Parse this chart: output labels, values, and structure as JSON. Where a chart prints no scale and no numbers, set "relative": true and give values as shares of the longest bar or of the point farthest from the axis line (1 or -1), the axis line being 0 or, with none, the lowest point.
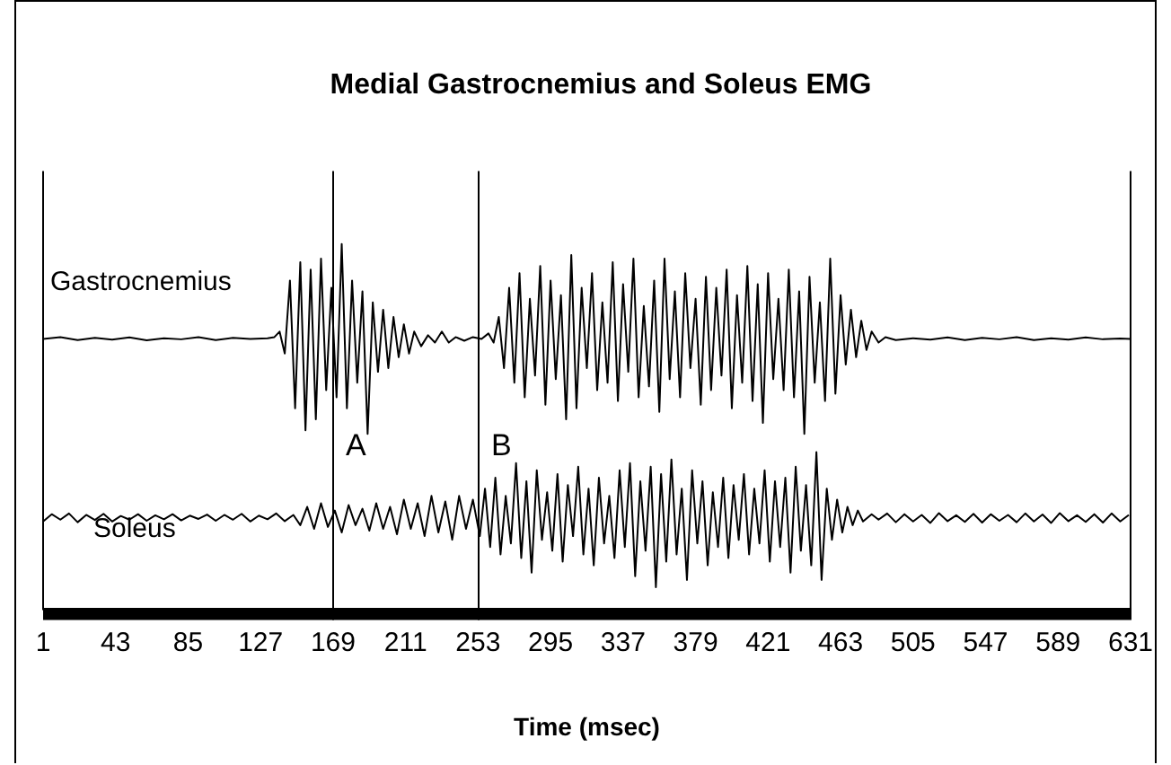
{
  "chart_data": {
    "type": "line",
    "title": "Medial Gastrocnemius and Soleus EMG",
    "xlabel": "Time (msec)",
    "relative": true,
    "xlim": [
      1,
      631
    ],
    "xticks": [
      1,
      43,
      85,
      127,
      169,
      211,
      253,
      295,
      337,
      379,
      421,
      463,
      505,
      547,
      589,
      631
    ],
    "tick_labels": "x",
    "grid": false,
    "legend": false,
    "marker": "none",
    "line_style": "solid",
    "ref_lines": [
      {
        "axis": "x",
        "value": 169,
        "label": "A",
        "color": "#000000"
      },
      {
        "axis": "x",
        "value": 253,
        "label": "B",
        "color": "#000000"
      }
    ],
    "series": [
      {
        "name": "Gastrocnemius",
        "color": "#000000",
        "x": [
          1,
          11,
          21,
          31,
          41,
          51,
          61,
          71,
          81,
          91,
          101,
          111,
          121,
          131,
          135,
          138,
          141,
          144,
          147,
          150,
          153,
          156,
          159,
          162,
          165,
          168,
          171,
          174,
          177,
          180,
          183,
          186,
          189,
          192,
          195,
          198,
          201,
          204,
          207,
          210,
          213,
          216,
          220,
          224,
          228,
          232,
          236,
          240,
          245,
          250,
          255,
          259,
          262,
          265,
          268,
          271,
          274,
          277,
          280,
          283,
          286,
          289,
          292,
          295,
          298,
          301,
          304,
          307,
          310,
          313,
          316,
          319,
          322,
          325,
          328,
          331,
          334,
          337,
          340,
          343,
          346,
          349,
          352,
          355,
          358,
          361,
          364,
          367,
          370,
          373,
          376,
          379,
          382,
          385,
          388,
          391,
          394,
          397,
          400,
          403,
          406,
          409,
          412,
          415,
          418,
          421,
          424,
          427,
          430,
          433,
          436,
          439,
          442,
          445,
          448,
          451,
          454,
          457,
          460,
          463,
          466,
          469,
          472,
          475,
          478,
          481,
          485,
          489,
          495,
          505,
          515,
          525,
          535,
          545,
          555,
          565,
          575,
          585,
          595,
          605,
          615,
          625,
          631
        ],
        "values": [
          0.74,
          0.745,
          0.737,
          0.743,
          0.738,
          0.744,
          0.736,
          0.742,
          0.739,
          0.745,
          0.737,
          0.743,
          0.74,
          0.742,
          0.745,
          0.76,
          0.7,
          0.9,
          0.55,
          0.95,
          0.49,
          0.93,
          0.52,
          0.96,
          0.6,
          0.88,
          0.58,
          1.0,
          0.55,
          0.9,
          0.62,
          0.87,
          0.48,
          0.84,
          0.65,
          0.82,
          0.66,
          0.8,
          0.69,
          0.78,
          0.7,
          0.76,
          0.72,
          0.75,
          0.73,
          0.76,
          0.73,
          0.745,
          0.735,
          0.745,
          0.74,
          0.755,
          0.73,
          0.8,
          0.66,
          0.88,
          0.62,
          0.92,
          0.58,
          0.85,
          0.64,
          0.94,
          0.56,
          0.9,
          0.63,
          0.86,
          0.52,
          0.97,
          0.55,
          0.88,
          0.66,
          0.92,
          0.6,
          0.84,
          0.62,
          0.95,
          0.57,
          0.89,
          0.65,
          0.96,
          0.58,
          0.83,
          0.61,
          0.9,
          0.54,
          0.96,
          0.63,
          0.87,
          0.58,
          0.92,
          0.66,
          0.85,
          0.56,
          0.91,
          0.6,
          0.88,
          0.64,
          0.93,
          0.55,
          0.86,
          0.62,
          0.94,
          0.57,
          0.89,
          0.51,
          0.92,
          0.63,
          0.85,
          0.6,
          0.93,
          0.58,
          0.87,
          0.48,
          0.91,
          0.62,
          0.84,
          0.57,
          0.96,
          0.59,
          0.86,
          0.67,
          0.82,
          0.69,
          0.79,
          0.71,
          0.76,
          0.73,
          0.745,
          0.737,
          0.742,
          0.738,
          0.744,
          0.737,
          0.743,
          0.739,
          0.745,
          0.737,
          0.742,
          0.738,
          0.744,
          0.739,
          0.741,
          0.74
        ]
      },
      {
        "name": "Soleus",
        "color": "#000000",
        "x": [
          1,
          6,
          11,
          16,
          21,
          26,
          31,
          36,
          41,
          46,
          51,
          56,
          61,
          66,
          71,
          76,
          81,
          86,
          91,
          96,
          101,
          106,
          111,
          116,
          121,
          126,
          131,
          136,
          141,
          146,
          150,
          154,
          158,
          162,
          166,
          170,
          174,
          178,
          182,
          186,
          190,
          194,
          198,
          202,
          206,
          210,
          214,
          218,
          222,
          226,
          230,
          234,
          238,
          242,
          246,
          250,
          254,
          257,
          260,
          263,
          266,
          269,
          272,
          275,
          278,
          281,
          284,
          287,
          290,
          293,
          296,
          299,
          302,
          305,
          308,
          311,
          314,
          317,
          320,
          323,
          326,
          329,
          332,
          335,
          338,
          341,
          344,
          347,
          350,
          353,
          356,
          359,
          362,
          365,
          368,
          371,
          374,
          377,
          380,
          383,
          386,
          389,
          392,
          395,
          398,
          401,
          404,
          407,
          410,
          413,
          416,
          419,
          422,
          425,
          428,
          431,
          434,
          437,
          440,
          443,
          446,
          449,
          452,
          455,
          458,
          461,
          464,
          467,
          470,
          473,
          476,
          481,
          485,
          490,
          495,
          500,
          505,
          510,
          515,
          520,
          525,
          530,
          535,
          540,
          545,
          550,
          555,
          560,
          565,
          570,
          575,
          580,
          585,
          590,
          595,
          600,
          605,
          610,
          615,
          620,
          625,
          630
        ],
        "values": [
          0.24,
          0.26,
          0.245,
          0.262,
          0.238,
          0.258,
          0.244,
          0.261,
          0.24,
          0.255,
          0.245,
          0.26,
          0.242,
          0.257,
          0.246,
          0.26,
          0.243,
          0.256,
          0.247,
          0.259,
          0.242,
          0.258,
          0.245,
          0.261,
          0.24,
          0.256,
          0.246,
          0.262,
          0.241,
          0.258,
          0.23,
          0.28,
          0.22,
          0.29,
          0.225,
          0.27,
          0.21,
          0.285,
          0.23,
          0.275,
          0.215,
          0.29,
          0.22,
          0.28,
          0.205,
          0.3,
          0.22,
          0.29,
          0.2,
          0.31,
          0.21,
          0.295,
          0.19,
          0.31,
          0.22,
          0.3,
          0.2,
          0.33,
          0.17,
          0.36,
          0.15,
          0.31,
          0.18,
          0.4,
          0.14,
          0.35,
          0.1,
          0.38,
          0.19,
          0.32,
          0.16,
          0.37,
          0.13,
          0.34,
          0.2,
          0.39,
          0.15,
          0.33,
          0.12,
          0.36,
          0.18,
          0.31,
          0.14,
          0.38,
          0.17,
          0.4,
          0.09,
          0.35,
          0.16,
          0.39,
          0.06,
          0.37,
          0.13,
          0.41,
          0.15,
          0.33,
          0.08,
          0.38,
          0.18,
          0.35,
          0.12,
          0.32,
          0.17,
          0.36,
          0.14,
          0.34,
          0.19,
          0.37,
          0.15,
          0.33,
          0.18,
          0.38,
          0.13,
          0.35,
          0.17,
          0.36,
          0.1,
          0.39,
          0.16,
          0.34,
          0.12,
          0.43,
          0.08,
          0.33,
          0.19,
          0.3,
          0.21,
          0.28,
          0.23,
          0.27,
          0.24,
          0.26,
          0.245,
          0.262,
          0.238,
          0.26,
          0.24,
          0.258,
          0.236,
          0.263,
          0.241,
          0.257,
          0.239,
          0.261,
          0.237,
          0.26,
          0.242,
          0.258,
          0.238,
          0.262,
          0.24,
          0.259,
          0.236,
          0.263,
          0.241,
          0.257,
          0.239,
          0.26,
          0.237,
          0.262,
          0.24,
          0.258
        ]
      }
    ]
  }
}
